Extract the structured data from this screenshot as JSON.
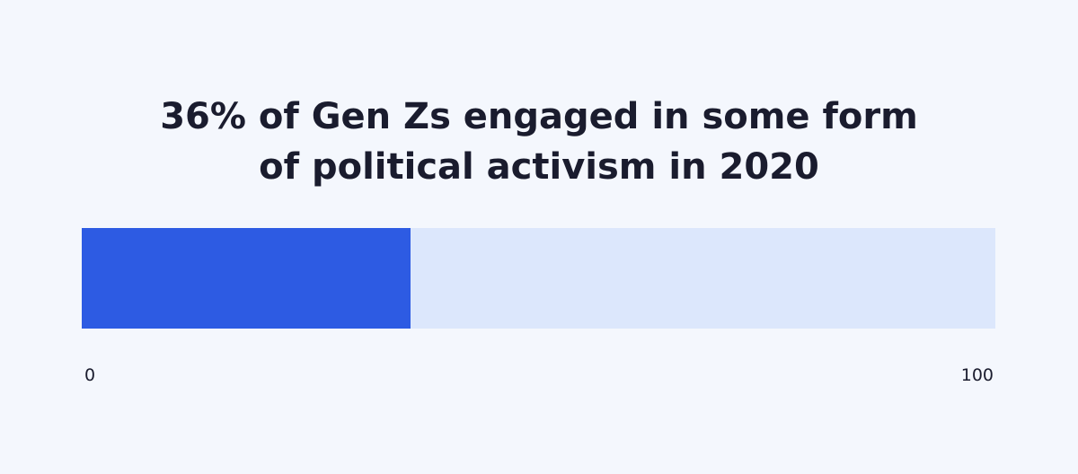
{
  "chart_data": {
    "type": "bar",
    "title_line1": "36% of Gen Zs engaged in some form",
    "title_line2": "of political activism in 2020",
    "values": [
      36
    ],
    "xlim": [
      0,
      100
    ],
    "tick_labels": [
      "0",
      "100"
    ],
    "colors": {
      "fill": "#2d5be3",
      "track": "#dce7fc",
      "background": "#f4f7fd",
      "text": "#1a1c2e"
    }
  }
}
